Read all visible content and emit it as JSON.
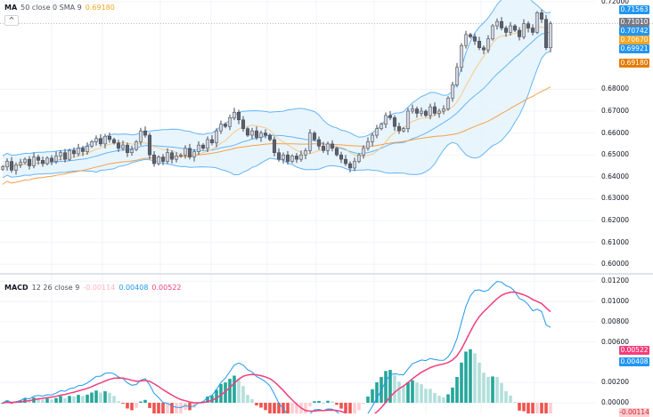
{
  "price_pane": {
    "legend": {
      "name": "MA",
      "params": "50 close 0 SMA 9",
      "value": "0.69180",
      "value_color": "#f5a623"
    },
    "collapse_label": "^",
    "axis_ticks": [
      {
        "label": "0.72000",
        "value": 0.72
      },
      {
        "label": "0.68000",
        "value": 0.68
      },
      {
        "label": "0.67000",
        "value": 0.67
      },
      {
        "label": "0.66000",
        "value": 0.66
      },
      {
        "label": "0.65000",
        "value": 0.65
      },
      {
        "label": "0.64000",
        "value": 0.64
      },
      {
        "label": "0.63000",
        "value": 0.63
      },
      {
        "label": "0.62000",
        "value": 0.62
      },
      {
        "label": "0.61000",
        "value": 0.61
      },
      {
        "label": "0.60000",
        "value": 0.6
      }
    ],
    "price_tags": [
      {
        "label": "0.71563",
        "value": 0.71563,
        "color": "#2196f3"
      },
      {
        "label": "0.71010",
        "value": 0.7101,
        "color": "#787b86"
      },
      {
        "label": "0.70742",
        "value": 0.70742,
        "color": "#2196f3"
      },
      {
        "label": "0.70670",
        "value": 0.7067,
        "color": "#f5a623"
      },
      {
        "label": "0.69921",
        "value": 0.69921,
        "color": "#2196f3"
      },
      {
        "label": "0.69180",
        "value": 0.6918,
        "color": "#e57c00"
      }
    ],
    "closes": [
      0.6445,
      0.647,
      0.643,
      0.6455,
      0.6465,
      0.648,
      0.645,
      0.649,
      0.6475,
      0.646,
      0.6485,
      0.647,
      0.6495,
      0.651,
      0.648,
      0.652,
      0.6505,
      0.653,
      0.6515,
      0.654,
      0.656,
      0.6575,
      0.655,
      0.6585,
      0.657,
      0.6555,
      0.653,
      0.6545,
      0.651,
      0.6525,
      0.656,
      0.661,
      0.659,
      0.65,
      0.646,
      0.649,
      0.647,
      0.651,
      0.648,
      0.6495,
      0.65,
      0.653,
      0.649,
      0.6515,
      0.6545,
      0.653,
      0.657,
      0.6555,
      0.661,
      0.664,
      0.663,
      0.667,
      0.6695,
      0.666,
      0.662,
      0.659,
      0.661,
      0.658,
      0.66,
      0.659,
      0.657,
      0.651,
      0.648,
      0.65,
      0.647,
      0.6495,
      0.648,
      0.65,
      0.652,
      0.66,
      0.657,
      0.654,
      0.652,
      0.655,
      0.653,
      0.65,
      0.648,
      0.646,
      0.644,
      0.647,
      0.65,
      0.653,
      0.656,
      0.659,
      0.662,
      0.664,
      0.668,
      0.667,
      0.663,
      0.661,
      0.662,
      0.67,
      0.671,
      0.669,
      0.67,
      0.668,
      0.672,
      0.669,
      0.67,
      0.671,
      0.676,
      0.682,
      0.69,
      0.7,
      0.705,
      0.704,
      0.702,
      0.699,
      0.698,
      0.703,
      0.709,
      0.711,
      0.708,
      0.706,
      0.709,
      0.707,
      0.704,
      0.71,
      0.708,
      0.706,
      0.715,
      0.712,
      0.699,
      0.71
    ],
    "colors": {
      "candle_up": "#d1d4dc",
      "candle_down": "#5d606b",
      "wick": "#434651",
      "bb_line": "#64b5f6",
      "bb_fill": "#e3f2fd",
      "ma_fast": "#f7c98b",
      "ma_slow": "#f5a04a"
    }
  },
  "macd_pane": {
    "legend": {
      "name": "MACD",
      "params": "12 26 close 9",
      "histogram": "-0.00114",
      "macd": "0.00408",
      "signal": "0.00522"
    },
    "axis_ticks": [
      {
        "label": "0.01200",
        "value": 0.012
      },
      {
        "label": "0.01000",
        "value": 0.01
      },
      {
        "label": "0.00800",
        "value": 0.008
      },
      {
        "label": "0.00600",
        "value": 0.006
      },
      {
        "label": "0.00200",
        "value": 0.002
      },
      {
        "label": "0.00000",
        "value": 0.0
      }
    ],
    "value_tags": [
      {
        "label": "0.00522",
        "value": 0.00522,
        "color": "#f23e7b"
      },
      {
        "label": "0.00408",
        "value": 0.00408,
        "color": "#2196f3"
      },
      {
        "label": "-0.00114",
        "value": -0.00114,
        "color": "#ffcdd2"
      }
    ],
    "colors": {
      "macd": "#2196f3",
      "signal": "#f23e7b",
      "hist_up_strong": "#26a69a",
      "hist_up_weak": "#b2dfdb",
      "hist_down_strong": "#ef5350",
      "hist_down_weak": "#ffcdd2",
      "legend_histogram": "#ffcdd2"
    }
  }
}
